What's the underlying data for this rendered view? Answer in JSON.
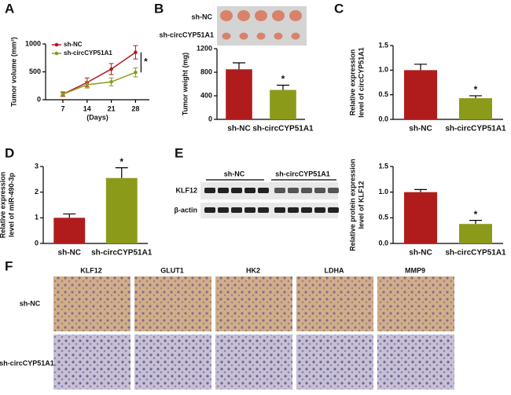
{
  "panel_letters": [
    "A",
    "B",
    "C",
    "D",
    "E",
    "F"
  ],
  "chart_data": [
    {
      "type": "line",
      "xlabel": "(Days)",
      "ylabel": [
        "Tumor volume (mm³)"
      ],
      "x": [
        7,
        14,
        21,
        28
      ],
      "xlim": [
        2,
        32
      ],
      "xticks": [
        7,
        14,
        21,
        28
      ],
      "ylim": [
        0,
        1000
      ],
      "yticks": [
        0,
        500,
        1000
      ],
      "legend": "upper-left",
      "annotation": "*",
      "series": [
        {
          "name": "sh-NC",
          "color": "#b01c1c",
          "values": [
            100,
            310,
            550,
            850
          ],
          "errors": [
            40,
            80,
            100,
            120
          ]
        },
        {
          "name": "sh-circCYP51A1",
          "color": "#8c9a1a",
          "values": [
            100,
            270,
            320,
            490
          ],
          "errors": [
            30,
            60,
            70,
            80
          ]
        }
      ]
    },
    {
      "type": "bar",
      "ylabel": [
        "Tumor weight (mg)"
      ],
      "categories": [
        "sh-NC",
        "sh-circCYP51A1"
      ],
      "values": [
        850,
        500
      ],
      "errors": [
        110,
        80
      ],
      "colors": [
        "#b01c1c",
        "#8c9a1a"
      ],
      "ylim": [
        0,
        1200
      ],
      "yticks": [
        0,
        400,
        800,
        1200
      ],
      "annotation": "*"
    },
    {
      "type": "bar",
      "ylabel": [
        "Relative expression",
        "level of circCYP51A1"
      ],
      "categories": [
        "sh-NC",
        "sh-circCYP51A1"
      ],
      "values": [
        1.0,
        0.43
      ],
      "errors": [
        0.12,
        0.05
      ],
      "colors": [
        "#b01c1c",
        "#8c9a1a"
      ],
      "ylim": [
        0,
        1.5
      ],
      "yticks": [
        {
          "value": 0,
          "label": "0.0"
        },
        0.5,
        {
          "value": 1,
          "label": "1.0"
        },
        1.5
      ],
      "annotation": "*"
    },
    {
      "type": "bar",
      "ylabel": [
        "Relative expression",
        "level of miR-490-3p"
      ],
      "categories": [
        "sh-NC",
        "sh-circCYP51A1"
      ],
      "values": [
        1.0,
        2.55
      ],
      "errors": [
        0.15,
        0.4
      ],
      "colors": [
        "#b01c1c",
        "#8c9a1a"
      ],
      "ylim": [
        0,
        3
      ],
      "yticks": [
        0,
        1,
        2,
        3
      ],
      "annotation": "*"
    },
    {
      "type": "bar",
      "ylabel": [
        "Relative protein expression",
        "level of KLF12"
      ],
      "categories": [
        "sh-NC",
        "sh-circCYP51A1"
      ],
      "values": [
        1.0,
        0.38
      ],
      "errors": [
        0.05,
        0.07
      ],
      "colors": [
        "#b01c1c",
        "#8c9a1a"
      ],
      "ylim": [
        0,
        1.5
      ],
      "yticks": [
        {
          "value": 0,
          "label": "0.0"
        },
        0.5,
        {
          "value": 1,
          "label": "1.0"
        },
        1.5
      ],
      "annotation": "*"
    }
  ],
  "photo": {
    "rows": [
      "sh-NC",
      "sh-circCYP51A1"
    ]
  },
  "blot": {
    "groups": [
      "sh-NC",
      "sh-circCYP51A1"
    ],
    "bands": [
      "KLF12",
      "β-actin"
    ]
  },
  "ihc": {
    "columns": [
      "KLF12",
      "GLUT1",
      "HK2",
      "LDHA",
      "MMP9"
    ],
    "rows": [
      "sh-NC",
      "sh-circCYP51A1"
    ]
  }
}
